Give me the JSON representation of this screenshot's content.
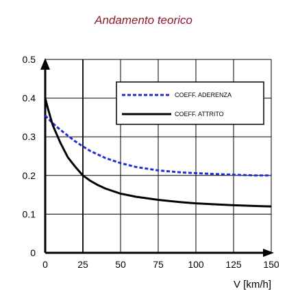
{
  "chart_data": {
    "type": "line",
    "title": "Andamento teorico",
    "xlabel": "V [km/h]",
    "ylabel": "",
    "xlim": [
      0,
      150
    ],
    "ylim": [
      0,
      0.5
    ],
    "x_ticks": [
      "0",
      "25",
      "50",
      "75",
      "100",
      "125",
      "150"
    ],
    "y_ticks": [
      "0",
      "0.1",
      "0.2",
      "0.3",
      "0.4",
      "0.5"
    ],
    "grid": true,
    "legend_position": "top-right",
    "series": [
      {
        "name": "COEFF. ADERENZA",
        "color": "#1f2ed6",
        "style": "dashed",
        "x": [
          0,
          5,
          10,
          15,
          20,
          25,
          30,
          40,
          50,
          60,
          75,
          90,
          100,
          110,
          125,
          140,
          150
        ],
        "y": [
          0.355,
          0.335,
          0.318,
          0.303,
          0.288,
          0.275,
          0.263,
          0.245,
          0.232,
          0.222,
          0.213,
          0.208,
          0.206,
          0.204,
          0.202,
          0.2,
          0.2
        ]
      },
      {
        "name": "COEFF. ATTRITO",
        "color": "#000000",
        "style": "solid",
        "x": [
          0,
          2,
          5,
          10,
          15,
          20,
          25,
          30,
          35,
          40,
          50,
          60,
          75,
          90,
          100,
          110,
          125,
          140,
          150
        ],
        "y": [
          0.4,
          0.37,
          0.33,
          0.285,
          0.247,
          0.222,
          0.2,
          0.186,
          0.175,
          0.166,
          0.153,
          0.145,
          0.137,
          0.131,
          0.128,
          0.126,
          0.123,
          0.121,
          0.12
        ]
      }
    ]
  }
}
